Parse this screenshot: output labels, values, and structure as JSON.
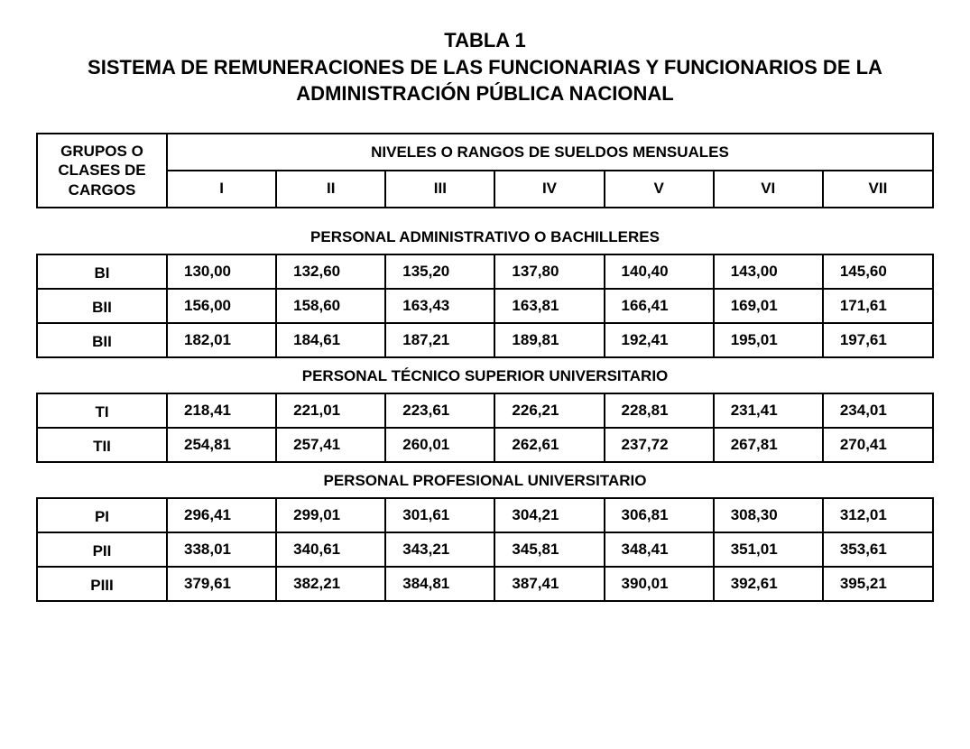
{
  "title": {
    "line1": "TABLA 1",
    "line2": "SISTEMA DE REMUNERACIONES DE LAS FUNCIONARIAS Y FUNCIONARIOS DE LA ADMINISTRACIÓN PÚBLICA NACIONAL"
  },
  "header": {
    "groups_label": "GRUPOS O CLASES DE CARGOS",
    "levels_label": "NIVELES O RANGOS DE SUELDOS MENSUALES",
    "columns": [
      "I",
      "II",
      "III",
      "IV",
      "V",
      "VI",
      "VII"
    ]
  },
  "sections": [
    {
      "name": "PERSONAL ADMINISTRATIVO O BACHILLERES",
      "rows": [
        {
          "label": "BI",
          "values": [
            "130,00",
            "132,60",
            "135,20",
            "137,80",
            "140,40",
            "143,00",
            "145,60"
          ]
        },
        {
          "label": "BII",
          "values": [
            "156,00",
            "158,60",
            "163,43",
            "163,81",
            "166,41",
            "169,01",
            "171,61"
          ]
        },
        {
          "label": "BII",
          "values": [
            "182,01",
            "184,61",
            "187,21",
            "189,81",
            "192,41",
            "195,01",
            "197,61"
          ]
        }
      ]
    },
    {
      "name": "PERSONAL TÉCNICO SUPERIOR UNIVERSITARIO",
      "rows": [
        {
          "label": "TI",
          "values": [
            "218,41",
            "221,01",
            "223,61",
            "226,21",
            "228,81",
            "231,41",
            "234,01"
          ]
        },
        {
          "label": "TII",
          "values": [
            "254,81",
            "257,41",
            "260,01",
            "262,61",
            "237,72",
            "267,81",
            "270,41"
          ]
        }
      ]
    },
    {
      "name": "PERSONAL PROFESIONAL UNIVERSITARIO",
      "rows": [
        {
          "label": "PI",
          "values": [
            "296,41",
            "299,01",
            "301,61",
            "304,21",
            "306,81",
            "308,30",
            "312,01"
          ]
        },
        {
          "label": "PII",
          "values": [
            "338,01",
            "340,61",
            "343,21",
            "345,81",
            "348,41",
            "351,01",
            "353,61"
          ]
        },
        {
          "label": "PIII",
          "values": [
            "379,61",
            "382,21",
            "384,81",
            "387,41",
            "390,01",
            "392,61",
            "395,21"
          ]
        }
      ]
    }
  ],
  "style": {
    "background_color": "#ffffff",
    "text_color": "#000000",
    "border_color": "#000000",
    "title_fontsize": 22,
    "cell_fontsize": 17,
    "font_family": "Arial, Helvetica, sans-serif",
    "column_widths_ratio": [
      1.3,
      1,
      1,
      1,
      1,
      1,
      1,
      1
    ]
  }
}
